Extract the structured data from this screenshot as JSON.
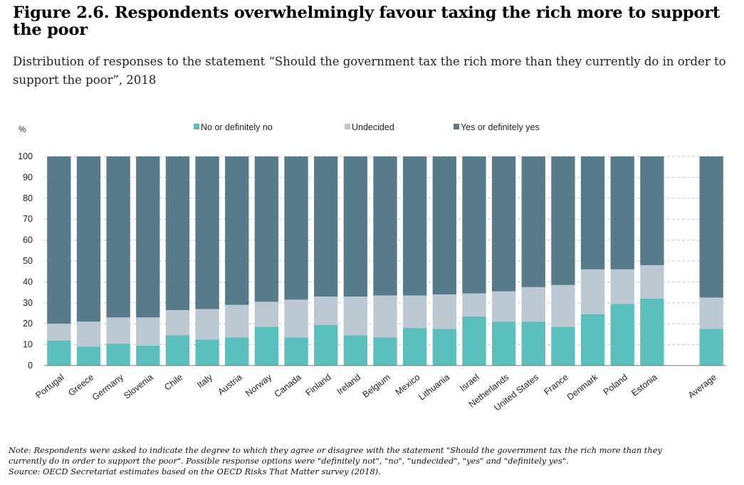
{
  "figure": {
    "title": "Figure 2.6. Respondents overwhelmingly favour taxing the rich more to support the poor",
    "subtitle": "Distribution of responses to the statement “Should the government tax the rich more than they currently do in order to support the poor”, 2018",
    "note_line1": "Note: Respondents were asked to indicate the degree to which they agree or disagree with the statement \"Should the government tax the rich more than they",
    "note_line2": "currently do in order to support the poor\". Possible response options were \"definitely not\", \"no\", \"undecided\", \"yes\" and \"definitely yes\".",
    "source": "Source: OECD Secretariat estimates based on the OECD Risks That Matter survey (2018)."
  },
  "colors": {
    "no": "#5bbfbd",
    "undecided": "#bcc9d3",
    "yes": "#587b8c"
  },
  "chart_data": {
    "type": "bar",
    "stacked": true,
    "ylabel": "%",
    "ylim": [
      0,
      100
    ],
    "yticks": [
      0,
      10,
      20,
      30,
      40,
      50,
      60,
      70,
      80,
      90,
      100
    ],
    "grid": true,
    "legend_position": "top",
    "categories": [
      "Portugal",
      "Greece",
      "Germany",
      "Slovenia",
      "Chile",
      "Italy",
      "Austria",
      "Norway",
      "Canada",
      "Finland",
      "Ireland",
      "Belgium",
      "Mexico",
      "Lithuania",
      "Israel",
      "Netherlands",
      "United States",
      "France",
      "Denmark",
      "Poland",
      "Estonia",
      "Average"
    ],
    "gap_before": "Average",
    "series": [
      {
        "name": "No or definitely no",
        "key": "no",
        "values": [
          12,
          9,
          10.5,
          9.5,
          14.5,
          12.5,
          13.5,
          18.5,
          13.5,
          19.5,
          14.5,
          13.5,
          18,
          17.5,
          23.5,
          21,
          21,
          18.5,
          24.5,
          29.5,
          32,
          17.5
        ]
      },
      {
        "name": "Undecided",
        "key": "undecided",
        "values": [
          8,
          12,
          12.5,
          13.5,
          12,
          14.5,
          15.5,
          12,
          18,
          13.5,
          18.5,
          20,
          15.5,
          16.5,
          11,
          14.5,
          16.5,
          20,
          21.5,
          16.5,
          16,
          15
        ]
      },
      {
        "name": "Yes or definitely yes",
        "key": "yes",
        "values": [
          80,
          79,
          77,
          77,
          73.5,
          73,
          71,
          69.5,
          68.5,
          67,
          67,
          66.5,
          66.5,
          66,
          65.5,
          64.5,
          62.5,
          61.5,
          54,
          54,
          52,
          67.5
        ]
      }
    ]
  }
}
